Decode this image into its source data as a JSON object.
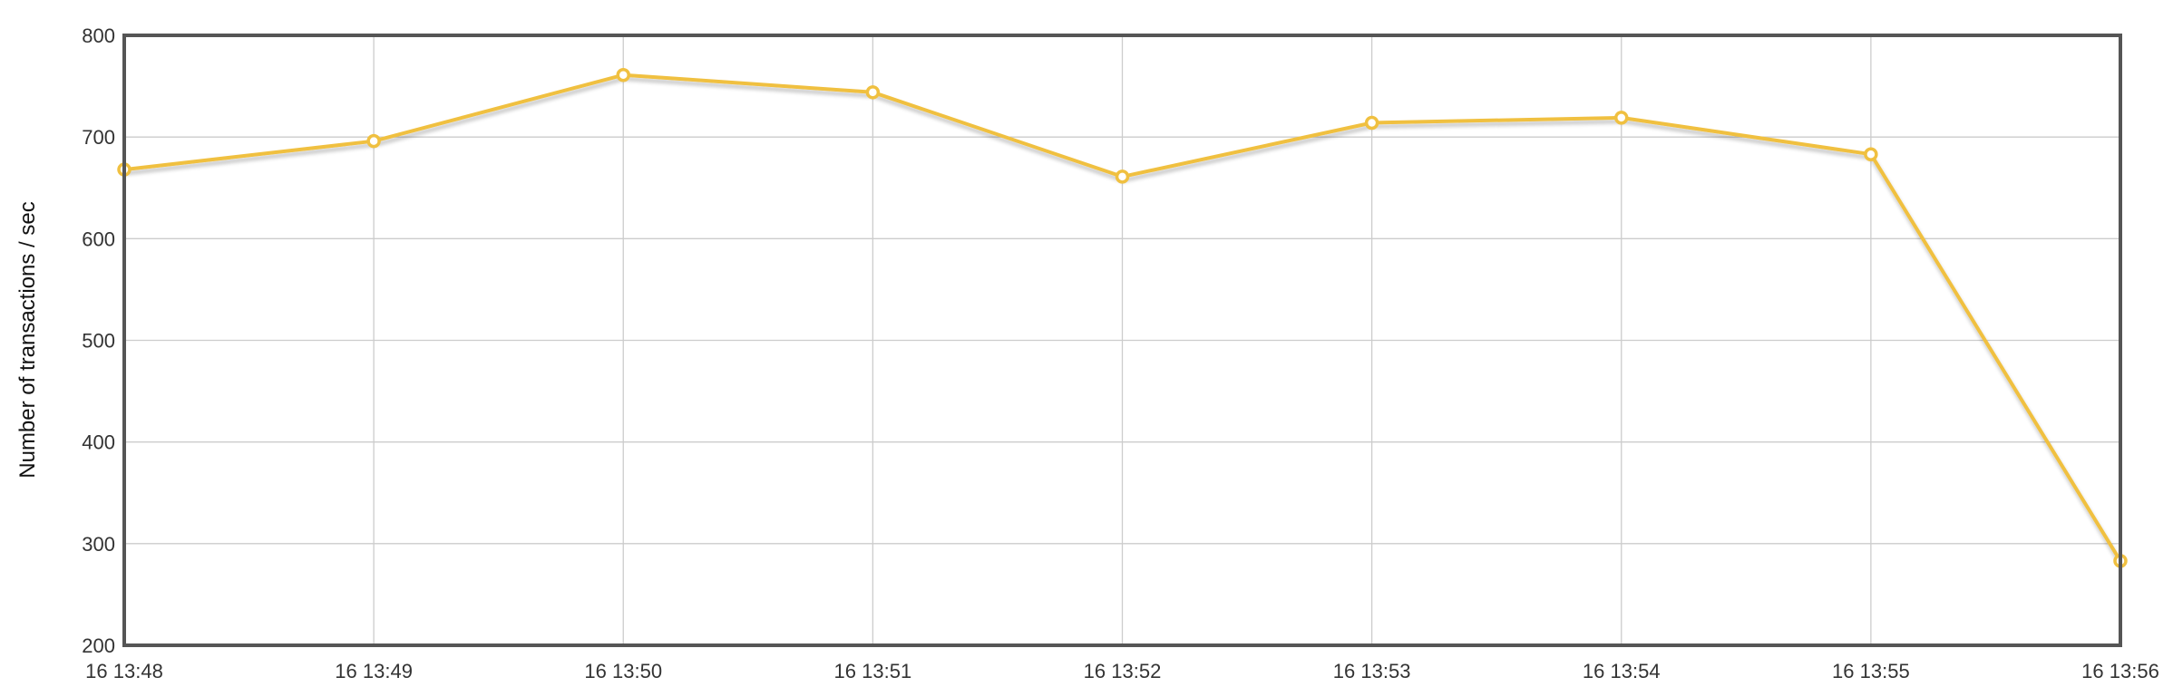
{
  "chart_data": {
    "type": "line",
    "title": "",
    "xlabel": "",
    "ylabel": "Number of transactions / sec",
    "categories": [
      "16 13:48",
      "16 13:49",
      "16 13:50",
      "16 13:51",
      "16 13:52",
      "16 13:53",
      "16 13:54",
      "16 13:55",
      "16 13:56"
    ],
    "series": [
      {
        "values": [
          668,
          696,
          761,
          744,
          661,
          714,
          719,
          683,
          283
        ],
        "color": "#f0c040"
      }
    ],
    "ylim": [
      200,
      800
    ],
    "yticks": [
      200,
      300,
      400,
      500,
      600,
      700,
      800
    ],
    "grid": true,
    "legend": "none"
  }
}
